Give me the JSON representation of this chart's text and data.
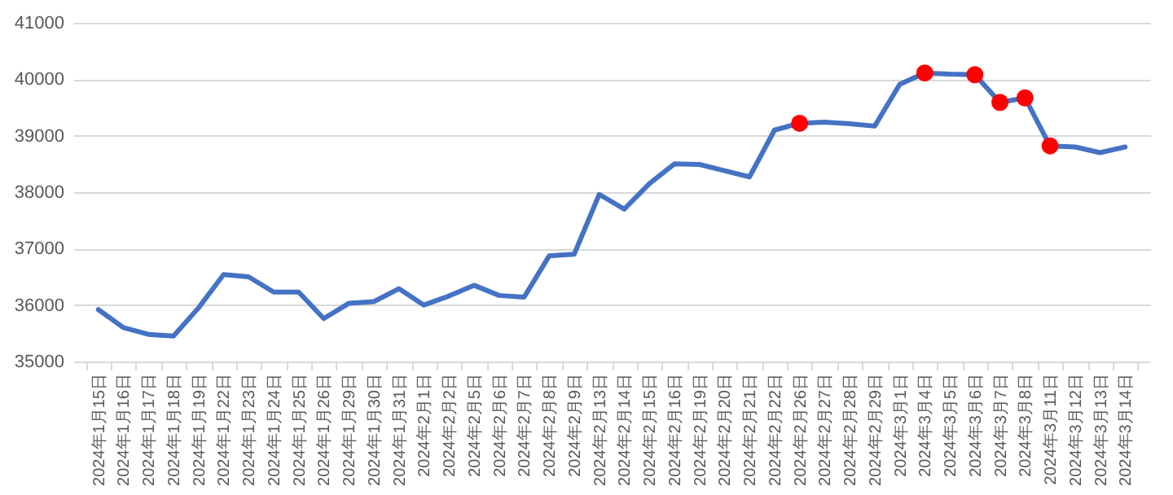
{
  "chart_data": {
    "type": "line",
    "categories": [
      "2024年1月15日",
      "2024年1月16日",
      "2024年1月17日",
      "2024年1月18日",
      "2024年1月19日",
      "2024年1月22日",
      "2024年1月23日",
      "2024年1月24日",
      "2024年1月25日",
      "2024年1月26日",
      "2024年1月29日",
      "2024年1月30日",
      "2024年1月31日",
      "2024年2月1日",
      "2024年2月2日",
      "2024年2月5日",
      "2024年2月6日",
      "2024年2月7日",
      "2024年2月8日",
      "2024年2月9日",
      "2024年2月13日",
      "2024年2月14日",
      "2024年2月15日",
      "2024年2月16日",
      "2024年2月19日",
      "2024年2月20日",
      "2024年2月21日",
      "2024年2月22日",
      "2024年2月26日",
      "2024年2月27日",
      "2024年2月28日",
      "2024年2月29日",
      "2024年3月1日",
      "2024年3月4日",
      "2024年3月5日",
      "2024年3月6日",
      "2024年3月7日",
      "2024年3月8日",
      "2024年3月11日",
      "2024年3月12日",
      "2024年3月13日",
      "2024年3月14日"
    ],
    "series": [
      {
        "color": "#4472c4",
        "values": [
          35920,
          35600,
          35480,
          35450,
          35950,
          36540,
          36500,
          36230,
          36230,
          35760,
          36030,
          36060,
          36290,
          36000,
          36160,
          36350,
          36170,
          36140,
          36870,
          36900,
          37960,
          37700,
          38150,
          38500,
          38490,
          38380,
          38270,
          39100,
          39220,
          39240,
          39210,
          39170,
          39910,
          40110,
          40090,
          40080,
          39590,
          39670,
          38820,
          38800,
          38700,
          38800
        ]
      },
      {
        "type": "scatter",
        "marker": "circle",
        "color": "#ff0000",
        "x": [
          "2024年2月26日",
          "2024年3月4日",
          "2024年3月6日",
          "2024年3月7日",
          "2024年3月8日",
          "2024年3月11日"
        ],
        "values": [
          39220,
          40110,
          40080,
          39590,
          39670,
          38820
        ]
      }
    ],
    "ylim": [
      35000,
      41000
    ],
    "yticks": [
      35000,
      36000,
      37000,
      38000,
      39000,
      40000,
      41000
    ],
    "grid": "y",
    "line_style": "solid"
  }
}
